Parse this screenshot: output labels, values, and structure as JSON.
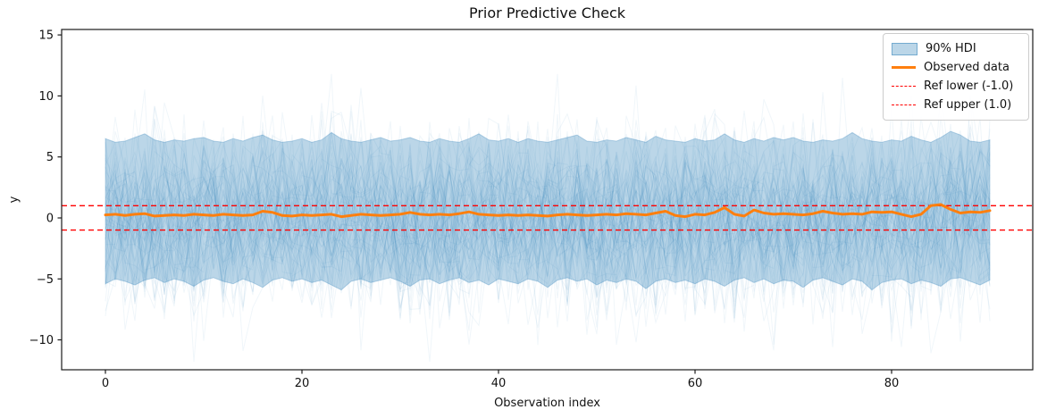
{
  "chart_data": {
    "type": "line",
    "title": "Prior Predictive Check",
    "xlabel": "Observation index",
    "ylabel": "y",
    "x_start": 0,
    "x_step": 1,
    "n_points": 91,
    "xlim": [
      -4.45,
      94.36
    ],
    "ylim": [
      -12.45,
      15.45
    ],
    "grid": false,
    "xticks": [
      0,
      20,
      40,
      60,
      80
    ],
    "xtick_labels": [
      "0",
      "20",
      "40",
      "60",
      "80"
    ],
    "yticks": [
      -10,
      -5,
      0,
      5,
      10,
      15
    ],
    "ytick_labels": [
      "−10",
      "−5",
      "0",
      "5",
      "10",
      "15"
    ],
    "ref_lines": {
      "lower": -1.0,
      "upper": 1.0
    },
    "legend": {
      "position": "upper right",
      "items": [
        {
          "label": "90% HDI",
          "type": "patch",
          "color": "#1f77b4",
          "alpha": 0.3
        },
        {
          "label": "Observed data",
          "type": "line",
          "color": "#ff7f0e"
        },
        {
          "label": "Ref lower (-1.0)",
          "type": "dashed",
          "color": "#ff0000"
        },
        {
          "label": "Ref upper (1.0)",
          "type": "dashed",
          "color": "#ff0000"
        }
      ]
    },
    "series": [
      {
        "name": "90% HDI upper",
        "values": [
          6.5,
          6.2,
          6.3,
          6.6,
          6.9,
          6.4,
          6.2,
          6.4,
          6.3,
          6.5,
          6.6,
          6.3,
          6.2,
          6.5,
          6.3,
          6.6,
          6.8,
          6.4,
          6.2,
          6.3,
          6.5,
          6.2,
          6.4,
          7.0,
          6.5,
          6.3,
          6.2,
          6.4,
          6.6,
          6.3,
          6.4,
          6.6,
          6.3,
          6.2,
          6.5,
          6.3,
          6.2,
          6.5,
          6.9,
          6.4,
          6.3,
          6.5,
          6.2,
          6.5,
          6.3,
          6.2,
          6.4,
          6.6,
          6.8,
          6.3,
          6.2,
          6.4,
          6.3,
          6.6,
          6.4,
          6.2,
          6.7,
          6.4,
          6.3,
          6.2,
          6.5,
          6.3,
          6.4,
          6.9,
          6.4,
          6.2,
          6.5,
          6.3,
          6.6,
          6.4,
          6.6,
          6.3,
          6.2,
          6.4,
          6.3,
          6.5,
          7.0,
          6.5,
          6.3,
          6.2,
          6.4,
          6.3,
          6.7,
          6.4,
          6.2,
          6.6,
          7.1,
          6.8,
          6.3,
          6.2,
          6.4
        ]
      },
      {
        "name": "90% HDI lower",
        "values": [
          -5.4,
          -5.0,
          -5.2,
          -5.5,
          -5.1,
          -4.9,
          -5.3,
          -5.0,
          -5.2,
          -5.6,
          -5.1,
          -4.9,
          -5.2,
          -5.4,
          -5.0,
          -5.3,
          -5.7,
          -5.1,
          -4.9,
          -5.2,
          -5.0,
          -5.3,
          -5.1,
          -5.5,
          -5.9,
          -5.2,
          -5.0,
          -5.3,
          -5.1,
          -4.9,
          -5.2,
          -5.6,
          -5.1,
          -5.0,
          -5.4,
          -5.1,
          -4.9,
          -5.3,
          -5.1,
          -5.5,
          -5.0,
          -5.2,
          -5.4,
          -5.0,
          -5.2,
          -5.7,
          -5.1,
          -4.9,
          -5.2,
          -5.0,
          -5.5,
          -5.1,
          -5.3,
          -5.0,
          -5.2,
          -5.8,
          -5.2,
          -5.0,
          -5.3,
          -5.1,
          -5.4,
          -5.0,
          -5.2,
          -5.6,
          -5.1,
          -4.9,
          -5.3,
          -5.0,
          -5.4,
          -5.1,
          -5.2,
          -5.7,
          -5.1,
          -4.9,
          -5.2,
          -5.5,
          -5.0,
          -5.2,
          -5.9,
          -5.3,
          -5.1,
          -5.0,
          -5.4,
          -5.1,
          -5.3,
          -5.6,
          -5.0,
          -4.9,
          -5.2,
          -5.5,
          -5.1
        ]
      },
      {
        "name": "Observed data",
        "values": [
          0.25,
          0.3,
          0.2,
          0.3,
          0.35,
          0.15,
          0.2,
          0.25,
          0.2,
          0.3,
          0.25,
          0.2,
          0.3,
          0.25,
          0.2,
          0.25,
          0.55,
          0.45,
          0.2,
          0.15,
          0.25,
          0.2,
          0.25,
          0.3,
          0.1,
          0.2,
          0.3,
          0.25,
          0.2,
          0.25,
          0.3,
          0.45,
          0.3,
          0.25,
          0.3,
          0.25,
          0.35,
          0.5,
          0.3,
          0.25,
          0.2,
          0.25,
          0.2,
          0.25,
          0.2,
          0.15,
          0.25,
          0.3,
          0.25,
          0.2,
          0.25,
          0.3,
          0.25,
          0.35,
          0.3,
          0.25,
          0.4,
          0.55,
          0.2,
          0.1,
          0.3,
          0.25,
          0.45,
          0.85,
          0.3,
          0.15,
          0.65,
          0.4,
          0.3,
          0.35,
          0.3,
          0.25,
          0.35,
          0.55,
          0.4,
          0.3,
          0.35,
          0.3,
          0.5,
          0.45,
          0.5,
          0.3,
          0.1,
          0.3,
          1.0,
          1.1,
          0.7,
          0.4,
          0.5,
          0.45,
          0.6
        ]
      }
    ],
    "prior_draws": {
      "description": "faint prior predictive sample paths",
      "count": 70,
      "seed": 12,
      "sd": 3.4,
      "clip": 11.8,
      "opacity": 0.065
    },
    "style": {
      "band_color": "#1f77b4",
      "band_alpha": 0.3,
      "draw_color": "#1f77b4",
      "observed_color": "#ff7f0e",
      "ref_color": "#ff0000",
      "frame_color": "#1a1a1a",
      "text_color": "#111111"
    }
  }
}
